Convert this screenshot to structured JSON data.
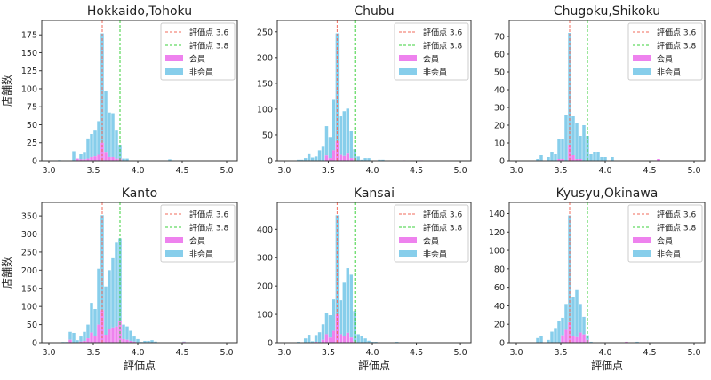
{
  "chart_data": [
    {
      "type": "bar",
      "stacked": true,
      "title": "Hokkaido,Tohoku",
      "xlabel": "",
      "ylabel": "店舗数",
      "xlim": [
        2.92,
        5.12
      ],
      "ylim": [
        0,
        195
      ],
      "xticks": [
        "3.0",
        "3.5",
        "4.0",
        "4.5",
        "5.0"
      ],
      "yticks": [
        0,
        25,
        50,
        75,
        100,
        125,
        150,
        175
      ],
      "bars": [
        [
          3.12,
          1,
          0
        ],
        [
          3.28,
          13,
          0
        ],
        [
          3.32,
          3,
          3
        ],
        [
          3.36,
          9,
          2
        ],
        [
          3.4,
          12,
          2
        ],
        [
          3.44,
          31,
          3
        ],
        [
          3.48,
          37,
          5
        ],
        [
          3.52,
          43,
          6
        ],
        [
          3.56,
          55,
          8
        ],
        [
          3.6,
          177,
          25
        ],
        [
          3.64,
          97,
          12
        ],
        [
          3.68,
          67,
          5
        ],
        [
          3.72,
          66,
          5
        ],
        [
          3.76,
          43,
          3
        ],
        [
          3.8,
          22,
          3
        ],
        [
          3.84,
          3,
          0
        ],
        [
          3.88,
          3,
          0
        ],
        [
          4.36,
          2,
          0
        ]
      ]
    },
    {
      "type": "bar",
      "stacked": true,
      "title": "Chubu",
      "xlabel": "",
      "ylabel": "",
      "xlim": [
        2.92,
        5.12
      ],
      "ylim": [
        0,
        272
      ],
      "xticks": [
        "3.0",
        "3.5",
        "4.0",
        "4.5",
        "5.0"
      ],
      "yticks": [
        0,
        50,
        100,
        150,
        200,
        250
      ],
      "bars": [
        [
          3.16,
          2,
          0
        ],
        [
          3.2,
          2,
          0
        ],
        [
          3.24,
          5,
          0
        ],
        [
          3.28,
          14,
          0
        ],
        [
          3.32,
          6,
          0
        ],
        [
          3.36,
          8,
          0
        ],
        [
          3.4,
          20,
          0
        ],
        [
          3.44,
          27,
          0
        ],
        [
          3.48,
          67,
          10
        ],
        [
          3.52,
          46,
          5
        ],
        [
          3.56,
          118,
          20
        ],
        [
          3.6,
          247,
          38
        ],
        [
          3.64,
          86,
          11
        ],
        [
          3.68,
          96,
          9
        ],
        [
          3.72,
          101,
          15
        ],
        [
          3.76,
          57,
          5
        ],
        [
          3.8,
          22,
          5
        ],
        [
          3.84,
          8,
          0
        ],
        [
          3.88,
          2,
          0
        ],
        [
          3.92,
          5,
          0
        ],
        [
          3.96,
          5,
          0
        ],
        [
          4.08,
          2,
          0
        ],
        [
          4.12,
          2,
          0
        ],
        [
          4.36,
          1,
          1
        ],
        [
          4.56,
          1,
          1
        ]
      ]
    },
    {
      "type": "bar",
      "stacked": true,
      "title": "Chugoku,Shikoku",
      "xlabel": "",
      "ylabel": "",
      "xlim": [
        2.92,
        5.12
      ],
      "ylim": [
        0,
        79
      ],
      "xticks": [
        "3.0",
        "3.5",
        "4.0",
        "4.5",
        "5.0"
      ],
      "yticks": [
        0,
        10,
        20,
        30,
        40,
        50,
        60,
        70
      ],
      "bars": [
        [
          3.24,
          1,
          0
        ],
        [
          3.28,
          3,
          0
        ],
        [
          3.36,
          2,
          0
        ],
        [
          3.4,
          5,
          0
        ],
        [
          3.44,
          4,
          0
        ],
        [
          3.48,
          12,
          1
        ],
        [
          3.52,
          12,
          1
        ],
        [
          3.56,
          26,
          0
        ],
        [
          3.6,
          72,
          9
        ],
        [
          3.64,
          25,
          3
        ],
        [
          3.68,
          21,
          1
        ],
        [
          3.72,
          14,
          1
        ],
        [
          3.76,
          20,
          0
        ],
        [
          3.8,
          14,
          0
        ],
        [
          3.84,
          4,
          0
        ],
        [
          3.88,
          5,
          0
        ],
        [
          3.92,
          5,
          0
        ],
        [
          3.96,
          2,
          0
        ],
        [
          4.0,
          2,
          0
        ],
        [
          4.08,
          2,
          0
        ],
        [
          4.6,
          1,
          1
        ]
      ]
    },
    {
      "type": "bar",
      "stacked": true,
      "title": "Kanto",
      "xlabel": "評価点",
      "ylabel": "店舗数",
      "xlim": [
        2.92,
        5.12
      ],
      "ylim": [
        0,
        387
      ],
      "xticks": [
        "3.0",
        "3.5",
        "4.0",
        "4.5",
        "5.0"
      ],
      "yticks": [
        0,
        50,
        100,
        150,
        200,
        250,
        300,
        350
      ],
      "bars": [
        [
          3.16,
          2,
          0
        ],
        [
          3.2,
          2,
          0
        ],
        [
          3.24,
          30,
          8
        ],
        [
          3.28,
          27,
          0
        ],
        [
          3.32,
          7,
          0
        ],
        [
          3.36,
          17,
          3
        ],
        [
          3.4,
          30,
          5
        ],
        [
          3.44,
          50,
          12
        ],
        [
          3.48,
          110,
          28
        ],
        [
          3.52,
          93,
          18
        ],
        [
          3.56,
          204,
          50
        ],
        [
          3.6,
          352,
          90
        ],
        [
          3.64,
          155,
          22
        ],
        [
          3.68,
          200,
          38
        ],
        [
          3.72,
          233,
          42
        ],
        [
          3.76,
          276,
          45
        ],
        [
          3.8,
          288,
          60
        ],
        [
          3.84,
          50,
          10
        ],
        [
          3.88,
          45,
          8
        ],
        [
          3.92,
          33,
          5
        ],
        [
          3.96,
          17,
          3
        ],
        [
          4.0,
          10,
          0
        ],
        [
          4.04,
          2,
          0
        ],
        [
          4.08,
          5,
          0
        ],
        [
          4.12,
          5,
          0
        ],
        [
          4.16,
          7,
          0
        ],
        [
          4.2,
          3,
          0
        ],
        [
          4.36,
          1,
          0
        ],
        [
          4.52,
          3,
          2
        ]
      ]
    },
    {
      "type": "bar",
      "stacked": true,
      "title": "Kansai",
      "xlabel": "評価点",
      "ylabel": "",
      "xlim": [
        2.92,
        5.12
      ],
      "ylim": [
        0,
        495
      ],
      "xticks": [
        "3.0",
        "3.5",
        "4.0",
        "4.5",
        "5.0"
      ],
      "yticks": [
        0,
        100,
        200,
        300,
        400
      ],
      "bars": [
        [
          3.16,
          3,
          0
        ],
        [
          3.24,
          15,
          0
        ],
        [
          3.28,
          28,
          0
        ],
        [
          3.32,
          5,
          0
        ],
        [
          3.36,
          27,
          3
        ],
        [
          3.4,
          37,
          0
        ],
        [
          3.44,
          65,
          10
        ],
        [
          3.48,
          105,
          30
        ],
        [
          3.52,
          97,
          18
        ],
        [
          3.56,
          153,
          42
        ],
        [
          3.6,
          450,
          100
        ],
        [
          3.64,
          150,
          30
        ],
        [
          3.68,
          212,
          25
        ],
        [
          3.72,
          263,
          35
        ],
        [
          3.76,
          240,
          18
        ],
        [
          3.8,
          112,
          5
        ],
        [
          3.84,
          30,
          0
        ],
        [
          3.88,
          22,
          0
        ],
        [
          3.92,
          15,
          0
        ],
        [
          3.96,
          7,
          0
        ],
        [
          4.0,
          3,
          0
        ],
        [
          4.04,
          3,
          0
        ],
        [
          4.2,
          1,
          0
        ],
        [
          4.24,
          1,
          0
        ],
        [
          4.28,
          3,
          0
        ]
      ]
    },
    {
      "type": "bar",
      "stacked": true,
      "title": "Kyusyu,Okinawa",
      "xlabel": "評価点",
      "ylabel": "",
      "xlim": [
        2.92,
        5.12
      ],
      "ylim": [
        0,
        152
      ],
      "xticks": [
        "3.0",
        "3.5",
        "4.0",
        "4.5",
        "5.0"
      ],
      "yticks": [
        0,
        20,
        40,
        60,
        80,
        100,
        120,
        140
      ],
      "bars": [
        [
          3.24,
          5,
          0
        ],
        [
          3.28,
          7,
          0
        ],
        [
          3.36,
          3,
          0
        ],
        [
          3.4,
          12,
          0
        ],
        [
          3.44,
          16,
          0
        ],
        [
          3.48,
          24,
          0
        ],
        [
          3.52,
          27,
          8
        ],
        [
          3.56,
          42,
          14
        ],
        [
          3.6,
          138,
          22
        ],
        [
          3.64,
          50,
          7
        ],
        [
          3.68,
          57,
          6
        ],
        [
          3.72,
          42,
          11
        ],
        [
          3.76,
          28,
          9
        ],
        [
          3.8,
          8,
          3
        ],
        [
          3.84,
          1,
          0
        ],
        [
          4.24,
          1,
          1
        ],
        [
          4.36,
          1,
          0
        ]
      ]
    }
  ],
  "bar_fields": [
    "x",
    "total",
    "member"
  ],
  "legend": {
    "items": [
      "評価点 3.6",
      "評価点 3.8",
      "会員",
      "非会員"
    ],
    "placement": "upper right"
  },
  "vlines": [
    3.6,
    3.8
  ],
  "colors": {
    "line36": "#f26b5b",
    "line38": "#3bd13b",
    "member": "#ee82ee",
    "nonmember": "#87ceeb"
  }
}
